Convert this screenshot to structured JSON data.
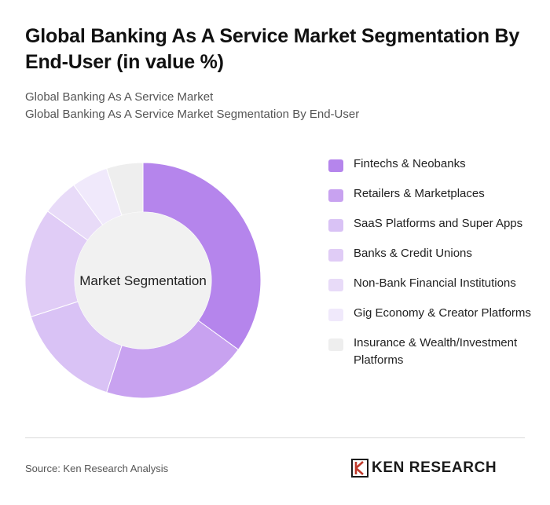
{
  "title": "Global Banking As A Service Market Segmentation By End-User (in value %)",
  "subtitle_lines": [
    "Global Banking As A Service Market",
    "Global Banking As A Service Market Segmentation By End-User"
  ],
  "chart_data": {
    "type": "pie",
    "variant": "donut",
    "center_label": "Market Segmentation",
    "legend_position": "right",
    "categories": [
      "Fintechs & Neobanks",
      "Retailers & Marketplaces",
      "SaaS Platforms and Super Apps",
      "Banks & Credit Unions",
      "Non-Bank Financial Institutions",
      "Gig Economy & Creator Platforms",
      "Insurance & Wealth/Investment Platforms"
    ],
    "values": [
      35,
      20,
      15,
      15,
      5,
      5,
      5
    ],
    "colors": [
      "#b585ec",
      "#c8a2f0",
      "#d9c2f5",
      "#e0ccf6",
      "#e8dbf8",
      "#f0e9fb",
      "#eeeeee"
    ]
  },
  "footer": {
    "source": "Source: Ken Research Analysis",
    "logo_text": "KEN RESEARCH"
  }
}
